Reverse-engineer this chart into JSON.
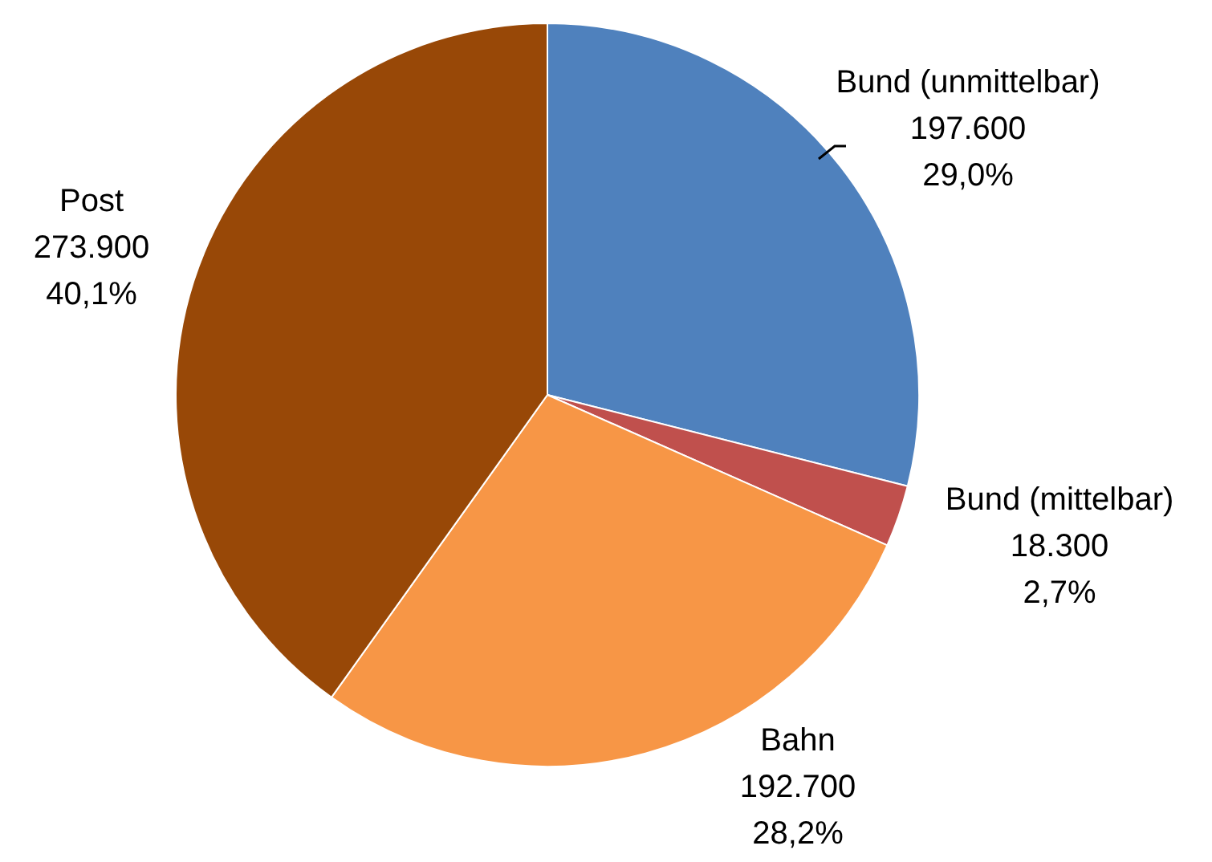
{
  "chart_data": {
    "type": "pie",
    "categories": [
      "Bund (unmittelbar)",
      "Bund (mittelbar)",
      "Bahn",
      "Post"
    ],
    "values": [
      197600,
      18300,
      192700,
      273900
    ],
    "colors": [
      "#4f81bd",
      "#c0504d",
      "#f79646",
      "#984807"
    ],
    "value_labels": [
      "197.600\n29,0%",
      "18.300\n2,7%",
      "192.700\n28,2%",
      "273.900\n40,1%"
    ],
    "legend": false
  }
}
